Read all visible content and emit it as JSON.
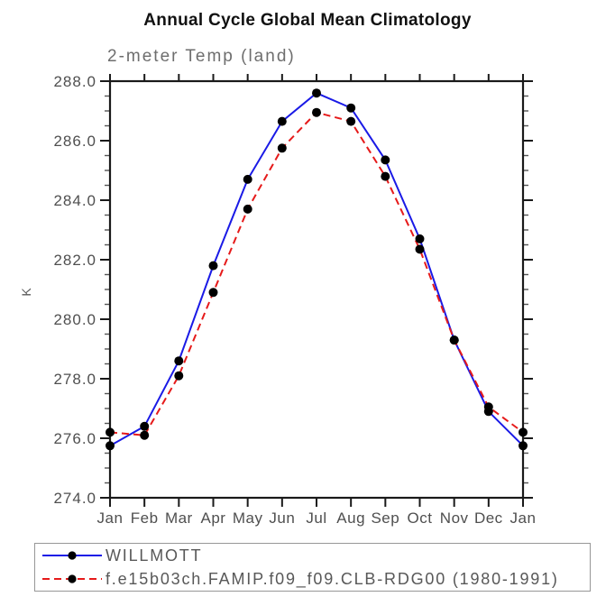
{
  "header": {
    "title": "Annual Cycle Global Mean Climatology",
    "subtitle": "2-meter Temp (land)"
  },
  "chart_data": {
    "type": "line",
    "title": "Annual Cycle Global Mean Climatology",
    "subtitle": "2-meter Temp (land)",
    "xlabel": "",
    "ylabel": "K",
    "x_tick_labels": [
      "Jan",
      "Feb",
      "Mar",
      "Apr",
      "May",
      "Jun",
      "Jul",
      "Aug",
      "Sep",
      "Oct",
      "Nov",
      "Dec",
      "Jan"
    ],
    "ylim": [
      274.0,
      288.0
    ],
    "y_major_step": 2.0,
    "y_minor_step": 0.5,
    "y_tick_labels": [
      "274.0",
      "276.0",
      "278.0",
      "280.0",
      "282.0",
      "284.0",
      "286.0",
      "288.0"
    ],
    "grid": false,
    "legend_position": "bottom-left-box",
    "marker": "filled-circle",
    "marker_color": "#000000",
    "axis_color": "#1a1a1a",
    "tick_label_color": "#4f4f4f",
    "series": [
      {
        "name": "WILLMOTT",
        "color": "#1a1ae6",
        "style": "solid",
        "values": [
          275.75,
          276.4,
          278.6,
          281.8,
          284.7,
          286.65,
          287.6,
          287.1,
          285.35,
          282.7,
          279.3,
          276.9,
          275.75
        ]
      },
      {
        "name": "f.e15b03ch.FAMIP.f09_f09.CLB-RDG00 (1980-1991)",
        "color": "#e61a1a",
        "style": "dashed",
        "values": [
          276.2,
          276.1,
          278.1,
          280.9,
          283.7,
          285.75,
          286.95,
          286.65,
          284.8,
          282.35,
          279.3,
          277.05,
          276.2
        ]
      }
    ]
  },
  "legend": {
    "items": [
      {
        "label": "WILLMOTT"
      },
      {
        "label": "f.e15b03ch.FAMIP.f09_f09.CLB-RDG00 (1980-1991)"
      }
    ]
  }
}
